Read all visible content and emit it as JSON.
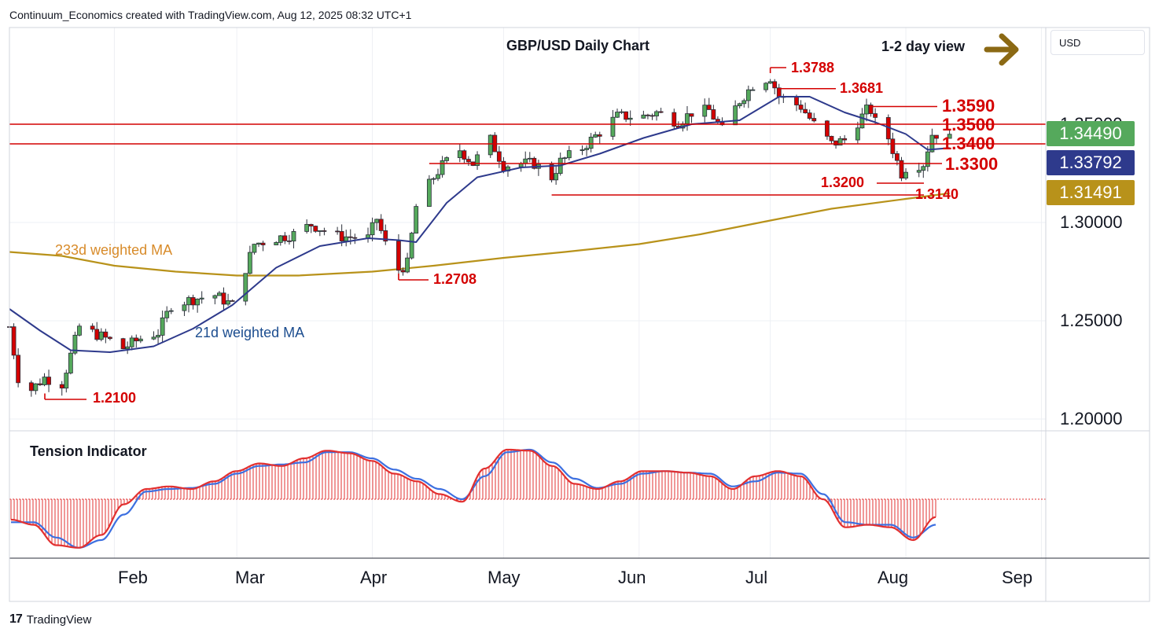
{
  "header": {
    "attribution": "Continuum_Economics created with TradingView.com, Aug 12, 2025 08:32 UTC+1"
  },
  "footer": {
    "logo_text": "TradingView"
  },
  "price_axis": {
    "currency": "USD",
    "ticks": [
      "1.35000",
      "1.30000",
      "1.25000",
      "1.20000"
    ],
    "tags": [
      {
        "text": "1.34490",
        "color": "#55a95c"
      },
      {
        "text": "1.33792",
        "color": "#2e3a8c"
      },
      {
        "text": "1.31491",
        "color": "#b8921a"
      }
    ]
  },
  "time_axis": {
    "months": [
      "Feb",
      "Mar",
      "Apr",
      "May",
      "Jun",
      "Jul",
      "Aug",
      "Sep"
    ]
  },
  "annotations": {
    "title": "GBP/USD Daily Chart",
    "view": "1-2 day view",
    "levels": {
      "l13788": "1.3788",
      "l13681": "1.3681",
      "l13590": "1.3590",
      "l13500": "1.3500",
      "l13400": "1.3400",
      "l13300": "1.3300",
      "l13200": "1.3200",
      "l13140": "1.3140",
      "l12708": "1.2708",
      "l12100": "1.2100"
    },
    "ma233_label": "233d weighted MA",
    "ma21_label": "21d weighted MA",
    "tension_label": "Tension Indicator"
  },
  "colors": {
    "bull": "#55a95c",
    "bear": "#d40000",
    "ma21": "#2e3a8c",
    "ma233": "#b8921a",
    "levels": "#d40000",
    "tension_fast": "#e23030",
    "tension_slow": "#3c6fe0",
    "arrow": "#8b6914"
  },
  "chart_data": [
    {
      "type": "candlestick",
      "title": "GBP/USD Daily Chart",
      "xlabel": "",
      "ylabel": "USD",
      "x_range": [
        "2025-01-08",
        "2025-09-02"
      ],
      "ylim": [
        1.186,
        1.404
      ],
      "y_ticks": [
        1.2,
        1.25,
        1.3,
        1.35
      ],
      "grid": true,
      "horizontal_levels": [
        1.35,
        1.34,
        1.33,
        1.32,
        1.314
      ],
      "marked_points": [
        {
          "label": "1.3788",
          "date": "2025-07-01",
          "value": 1.3788
        },
        {
          "label": "1.3681",
          "date": "2025-07-02",
          "value": 1.3681
        },
        {
          "label": "1.3590",
          "date": "2025-07-24",
          "value": 1.359
        },
        {
          "label": "1.3200",
          "date": "2025-08-01",
          "value": 1.32
        },
        {
          "label": "1.3140",
          "date": "2025-05-12",
          "value": 1.314
        },
        {
          "label": "1.2708",
          "date": "2025-04-07",
          "value": 1.2708
        },
        {
          "label": "1.2100",
          "date": "2025-01-13",
          "value": 1.21
        }
      ],
      "anchors": [
        [
          "2025-01-08",
          1.247
        ],
        [
          "2025-01-10",
          1.221
        ],
        [
          "2025-01-13",
          1.215
        ],
        [
          "2025-01-16",
          1.221
        ],
        [
          "2025-01-20",
          1.218
        ],
        [
          "2025-01-24",
          1.247
        ],
        [
          "2025-01-31",
          1.24
        ],
        [
          "2025-02-03",
          1.236
        ],
        [
          "2025-02-07",
          1.241
        ],
        [
          "2025-02-11",
          1.244
        ],
        [
          "2025-02-14",
          1.258
        ],
        [
          "2025-02-19",
          1.261
        ],
        [
          "2025-02-24",
          1.263
        ],
        [
          "2025-02-28",
          1.258
        ],
        [
          "2025-03-05",
          1.289
        ],
        [
          "2025-03-10",
          1.292
        ],
        [
          "2025-03-14",
          1.294
        ],
        [
          "2025-03-18",
          1.299
        ],
        [
          "2025-03-24",
          1.293
        ],
        [
          "2025-03-31",
          1.292
        ],
        [
          "2025-04-02",
          1.302
        ],
        [
          "2025-04-04",
          1.289
        ],
        [
          "2025-04-07",
          1.276
        ],
        [
          "2025-04-09",
          1.279
        ],
        [
          "2025-04-11",
          1.308
        ],
        [
          "2025-04-15",
          1.323
        ],
        [
          "2025-04-17",
          1.329
        ],
        [
          "2025-04-21",
          1.337
        ],
        [
          "2025-04-24",
          1.33
        ],
        [
          "2025-04-28",
          1.342
        ],
        [
          "2025-05-01",
          1.329
        ],
        [
          "2025-05-05",
          1.33
        ],
        [
          "2025-05-08",
          1.33
        ],
        [
          "2025-05-12",
          1.323
        ],
        [
          "2025-05-14",
          1.331
        ],
        [
          "2025-05-19",
          1.338
        ],
        [
          "2025-05-23",
          1.346
        ],
        [
          "2025-05-27",
          1.354
        ],
        [
          "2025-06-02",
          1.354
        ],
        [
          "2025-06-05",
          1.356
        ],
        [
          "2025-06-10",
          1.351
        ],
        [
          "2025-06-13",
          1.356
        ],
        [
          "2025-06-17",
          1.357
        ],
        [
          "2025-06-20",
          1.347
        ],
        [
          "2025-06-24",
          1.362
        ],
        [
          "2025-06-27",
          1.37
        ],
        [
          "2025-07-01",
          1.374
        ],
        [
          "2025-07-03",
          1.364
        ],
        [
          "2025-07-08",
          1.359
        ],
        [
          "2025-07-11",
          1.35
        ],
        [
          "2025-07-15",
          1.34
        ],
        [
          "2025-07-18",
          1.342
        ],
        [
          "2025-07-23",
          1.357
        ],
        [
          "2025-07-24",
          1.357
        ],
        [
          "2025-07-25",
          1.351
        ],
        [
          "2025-07-28",
          1.343
        ],
        [
          "2025-07-31",
          1.325
        ],
        [
          "2025-08-01",
          1.328
        ],
        [
          "2025-08-05",
          1.33
        ],
        [
          "2025-08-07",
          1.345
        ],
        [
          "2025-08-11",
          1.345
        ]
      ],
      "ma21": [
        [
          "2025-01-08",
          1.256
        ],
        [
          "2025-01-15",
          1.245
        ],
        [
          "2025-01-22",
          1.235
        ],
        [
          "2025-01-31",
          1.234
        ],
        [
          "2025-02-10",
          1.237
        ],
        [
          "2025-02-19",
          1.246
        ],
        [
          "2025-02-28",
          1.258
        ],
        [
          "2025-03-10",
          1.277
        ],
        [
          "2025-03-20",
          1.288
        ],
        [
          "2025-03-31",
          1.292
        ],
        [
          "2025-04-07",
          1.291
        ],
        [
          "2025-04-11",
          1.29
        ],
        [
          "2025-04-18",
          1.31
        ],
        [
          "2025-04-25",
          1.323
        ],
        [
          "2025-05-05",
          1.328
        ],
        [
          "2025-05-14",
          1.329
        ],
        [
          "2025-05-23",
          1.335
        ],
        [
          "2025-06-02",
          1.343
        ],
        [
          "2025-06-13",
          1.35
        ],
        [
          "2025-06-24",
          1.352
        ],
        [
          "2025-07-03",
          1.364
        ],
        [
          "2025-07-10",
          1.364
        ],
        [
          "2025-07-18",
          1.356
        ],
        [
          "2025-07-25",
          1.351
        ],
        [
          "2025-08-01",
          1.345
        ],
        [
          "2025-08-06",
          1.337
        ],
        [
          "2025-08-11",
          1.3379
        ]
      ],
      "ma233": [
        [
          "2025-01-08",
          1.285
        ],
        [
          "2025-01-20",
          1.283
        ],
        [
          "2025-02-01",
          1.278
        ],
        [
          "2025-02-15",
          1.275
        ],
        [
          "2025-03-01",
          1.273
        ],
        [
          "2025-03-15",
          1.273
        ],
        [
          "2025-04-01",
          1.275
        ],
        [
          "2025-04-15",
          1.278
        ],
        [
          "2025-05-01",
          1.282
        ],
        [
          "2025-05-15",
          1.285
        ],
        [
          "2025-06-01",
          1.289
        ],
        [
          "2025-06-15",
          1.294
        ],
        [
          "2025-07-01",
          1.301
        ],
        [
          "2025-07-15",
          1.307
        ],
        [
          "2025-08-01",
          1.312
        ],
        [
          "2025-08-11",
          1.3149
        ]
      ],
      "last_close": 1.3449
    },
    {
      "type": "line",
      "title": "Tension Indicator",
      "series": [
        {
          "role": "fast",
          "color": "#e23030",
          "values": [
            -0.4,
            -0.5,
            -0.9,
            -0.95,
            -0.7,
            -0.1,
            0.2,
            0.25,
            0.2,
            0.35,
            0.55,
            0.7,
            0.65,
            0.8,
            0.95,
            0.9,
            0.75,
            0.5,
            0.35,
            0.1,
            -0.05,
            0.6,
            0.97,
            0.95,
            0.65,
            0.3,
            0.2,
            0.35,
            0.55,
            0.55,
            0.52,
            0.45,
            0.2,
            0.45,
            0.55,
            0.45,
            0.0,
            -0.55,
            -0.5,
            -0.55,
            -0.8,
            -0.35
          ]
        },
        {
          "role": "slow",
          "color": "#3c6fe0",
          "values": [
            -0.45,
            -0.45,
            -0.75,
            -0.95,
            -0.8,
            -0.3,
            0.15,
            0.2,
            0.22,
            0.3,
            0.5,
            0.65,
            0.68,
            0.72,
            0.92,
            0.92,
            0.8,
            0.58,
            0.4,
            0.2,
            0.0,
            0.45,
            0.92,
            0.97,
            0.72,
            0.4,
            0.22,
            0.3,
            0.5,
            0.55,
            0.52,
            0.5,
            0.25,
            0.35,
            0.52,
            0.5,
            0.1,
            -0.45,
            -0.5,
            -0.5,
            -0.75,
            -0.5
          ]
        }
      ]
    }
  ]
}
